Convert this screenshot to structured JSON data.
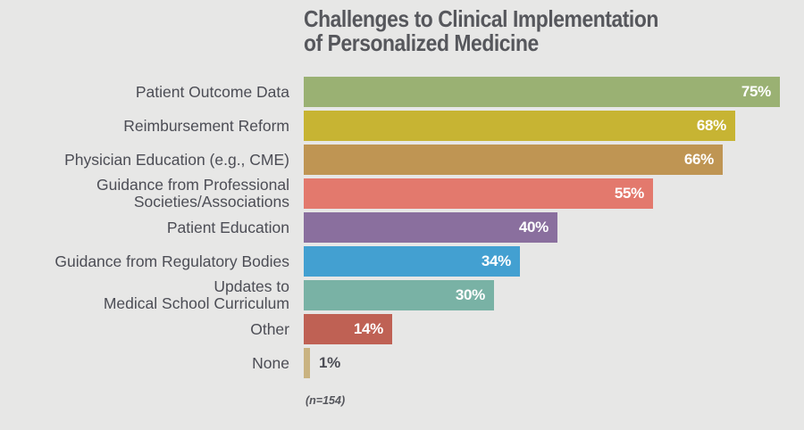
{
  "title": {
    "line1": "Challenges to Clinical Implementation",
    "line2": "of Personalized Medicine"
  },
  "footnote": "(n=154)",
  "colors": {
    "background": "#e7e7e6",
    "title_text": "#56575c",
    "label_text": "#4c4d55",
    "value_text_inside": "#ffffff"
  },
  "chart_data": {
    "type": "bar",
    "orientation": "horizontal",
    "title": "Challenges to Clinical Implementation of Personalized Medicine",
    "annotation": "(n=154)",
    "x_axis_visible": false,
    "xlim": [
      0,
      100
    ],
    "unit": "%",
    "categories": [
      "Patient Outcome Data",
      "Reimbursement Reform",
      "Physician Education (e.g., CME)",
      "Guidance from Professional Societies/Associations",
      "Patient Education",
      "Guidance from Regulatory Bodies",
      "Updates to Medical School Curriculum",
      "Other",
      "None"
    ],
    "values": [
      75,
      68,
      66,
      55,
      40,
      34,
      30,
      14,
      1
    ],
    "bars": [
      {
        "label_lines": [
          "Patient Outcome Data"
        ],
        "value": 75,
        "display": "75%",
        "color": "#9ab173",
        "value_inside": true
      },
      {
        "label_lines": [
          "Reimbursement Reform"
        ],
        "value": 68,
        "display": "68%",
        "color": "#c7b433",
        "value_inside": true
      },
      {
        "label_lines": [
          "Physician Education (e.g., CME)"
        ],
        "value": 66,
        "display": "66%",
        "color": "#bf9553",
        "value_inside": true
      },
      {
        "label_lines": [
          "Guidance from Professional",
          "Societies/Associations"
        ],
        "value": 55,
        "display": "55%",
        "color": "#e3796d",
        "value_inside": true
      },
      {
        "label_lines": [
          "Patient Education"
        ],
        "value": 40,
        "display": "40%",
        "color": "#8a6f9e",
        "value_inside": true
      },
      {
        "label_lines": [
          "Guidance from Regulatory Bodies"
        ],
        "value": 34,
        "display": "34%",
        "color": "#43a0d1",
        "value_inside": true
      },
      {
        "label_lines": [
          "Updates to",
          "Medical School Curriculum"
        ],
        "value": 30,
        "display": "30%",
        "color": "#79b2a5",
        "value_inside": true
      },
      {
        "label_lines": [
          "Other"
        ],
        "value": 14,
        "display": "14%",
        "color": "#bf6154",
        "value_inside": true
      },
      {
        "label_lines": [
          "None"
        ],
        "value": 1,
        "display": "1%",
        "color": "#c9b381",
        "value_inside": false
      }
    ]
  }
}
